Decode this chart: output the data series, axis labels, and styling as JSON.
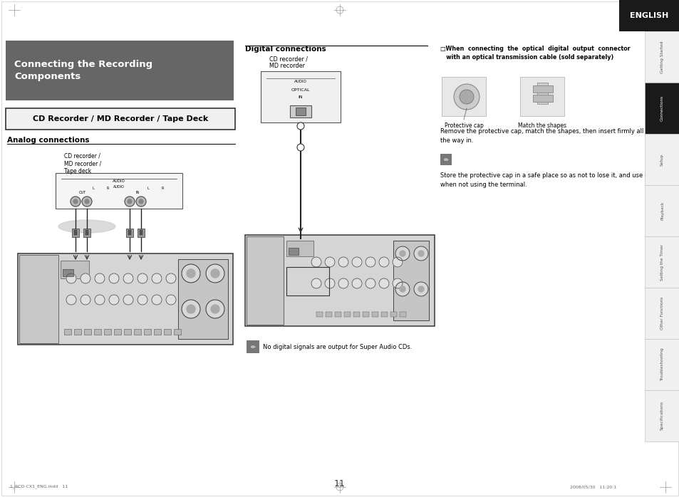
{
  "page_bg": "#ffffff",
  "page_num": "11",
  "timestamp": "2008/05/30   11:20:1",
  "filename": "1_RCD-CX1_ENG.indd   11",
  "english_tab": {
    "text": "ENGLISH",
    "bg": "#1a1a1a",
    "fg": "#ffffff"
  },
  "main_title": "Connecting the Recording\nComponents",
  "main_title_bg": "#666666",
  "subtitle": "CD Recorder / MD Recorder / Tape Deck",
  "analog_label": "Analog connections",
  "digital_label": "Digital connections",
  "right_title_line1": "□When  connecting  the  optical  digital  output  connector",
  "right_title_line2": "   with an optical transmission cable (sold separately)",
  "note_text1": "No digital signals are output for Super Audio CDs.",
  "note_text2": "Remove the protective cap, match the shapes, then insert firmly all\nthe way in.",
  "note_text3": "Store the protective cap in a safe place so as not to lose it, and use it\nwhen not using the terminal.",
  "protective_cap_label": "Protective cap",
  "match_shapes_label": "Match the shapes",
  "cd_recorder_label_analog": "CD recorder /\nMD recorder /\nTape deck",
  "cd_recorder_label_digital": "CD recorder /\nMD recorder",
  "sidebar_items": [
    "Getting Started",
    "Connections",
    "Setup",
    "Playback",
    "Setting the Timer",
    "Other Functions",
    "Troubleshooting",
    "Specifications"
  ],
  "sidebar_active": "Connections",
  "colors": {
    "title_bg": "#666666",
    "subtitle_bg": "#f0f0f0",
    "sidebar_active_bg": "#1a1a1a",
    "sidebar_inactive_bg": "#f0f0f0",
    "sidebar_active_fg": "#ffffff",
    "sidebar_inactive_fg": "#555555",
    "sidebar_border": "#bbbbbb",
    "english_bg": "#1a1a1a",
    "english_fg": "#ffffff",
    "note_icon_bg": "#777777",
    "line_color": "#000000",
    "device_fill": "#f0f0f0",
    "device_border": "#555555",
    "receiver_fill": "#d8d8d8",
    "receiver_border": "#444444",
    "cable_color": "#222222",
    "connector_fill": "#888888",
    "image_placeholder": "#dddddd"
  }
}
